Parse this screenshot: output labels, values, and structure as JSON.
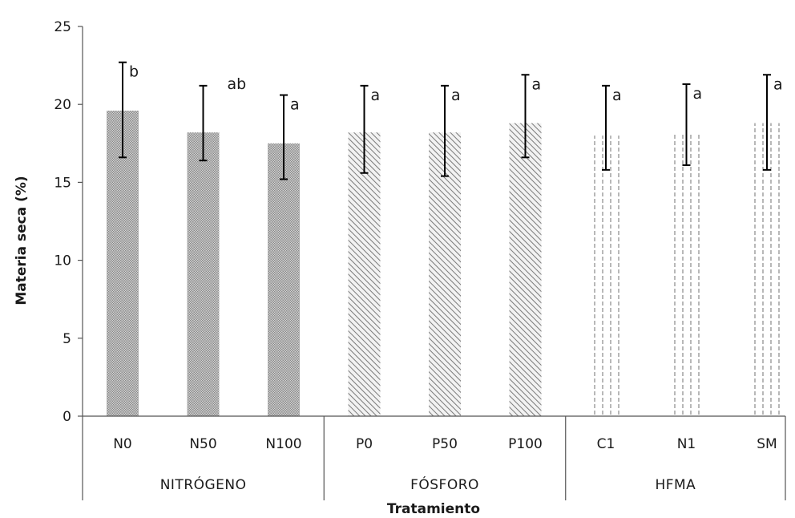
{
  "chart_data": {
    "type": "bar",
    "title": "",
    "xlabel": "Tratamiento",
    "ylabel": "Materia seca (%)",
    "ylim": [
      0,
      25
    ],
    "yticks": [
      0,
      5,
      10,
      15,
      20,
      25
    ],
    "grid": false,
    "legend": "none",
    "groups": [
      {
        "name": "NITRÓGENO",
        "categories": [
          "N0",
          "N50",
          "N100"
        ],
        "pattern": "dense-crosshatch"
      },
      {
        "name": "FÓSFORO",
        "categories": [
          "P0",
          "P50",
          "P100"
        ],
        "pattern": "diagonal-hatch"
      },
      {
        "name": "HFMA",
        "categories": [
          "C1",
          "N1",
          "SM"
        ],
        "pattern": "vertical-dashed"
      }
    ],
    "categories": [
      "N0",
      "N50",
      "N100",
      "P0",
      "P50",
      "P100",
      "C1",
      "N1",
      "SM"
    ],
    "values": [
      19.6,
      18.2,
      17.5,
      18.2,
      18.2,
      18.8,
      18.0,
      18.2,
      18.8
    ],
    "error_low": [
      16.6,
      16.4,
      15.2,
      15.6,
      15.4,
      16.6,
      15.8,
      16.1,
      15.8
    ],
    "error_high": [
      22.7,
      21.2,
      20.6,
      21.2,
      21.2,
      21.9,
      21.2,
      21.3,
      21.9
    ],
    "significance": [
      "b",
      "ab",
      "a",
      "a",
      "a",
      "a",
      "a",
      "a",
      "a"
    ],
    "colors": {
      "bar": "#8c8c8c",
      "axis": "#000000",
      "error": "#000000"
    }
  }
}
